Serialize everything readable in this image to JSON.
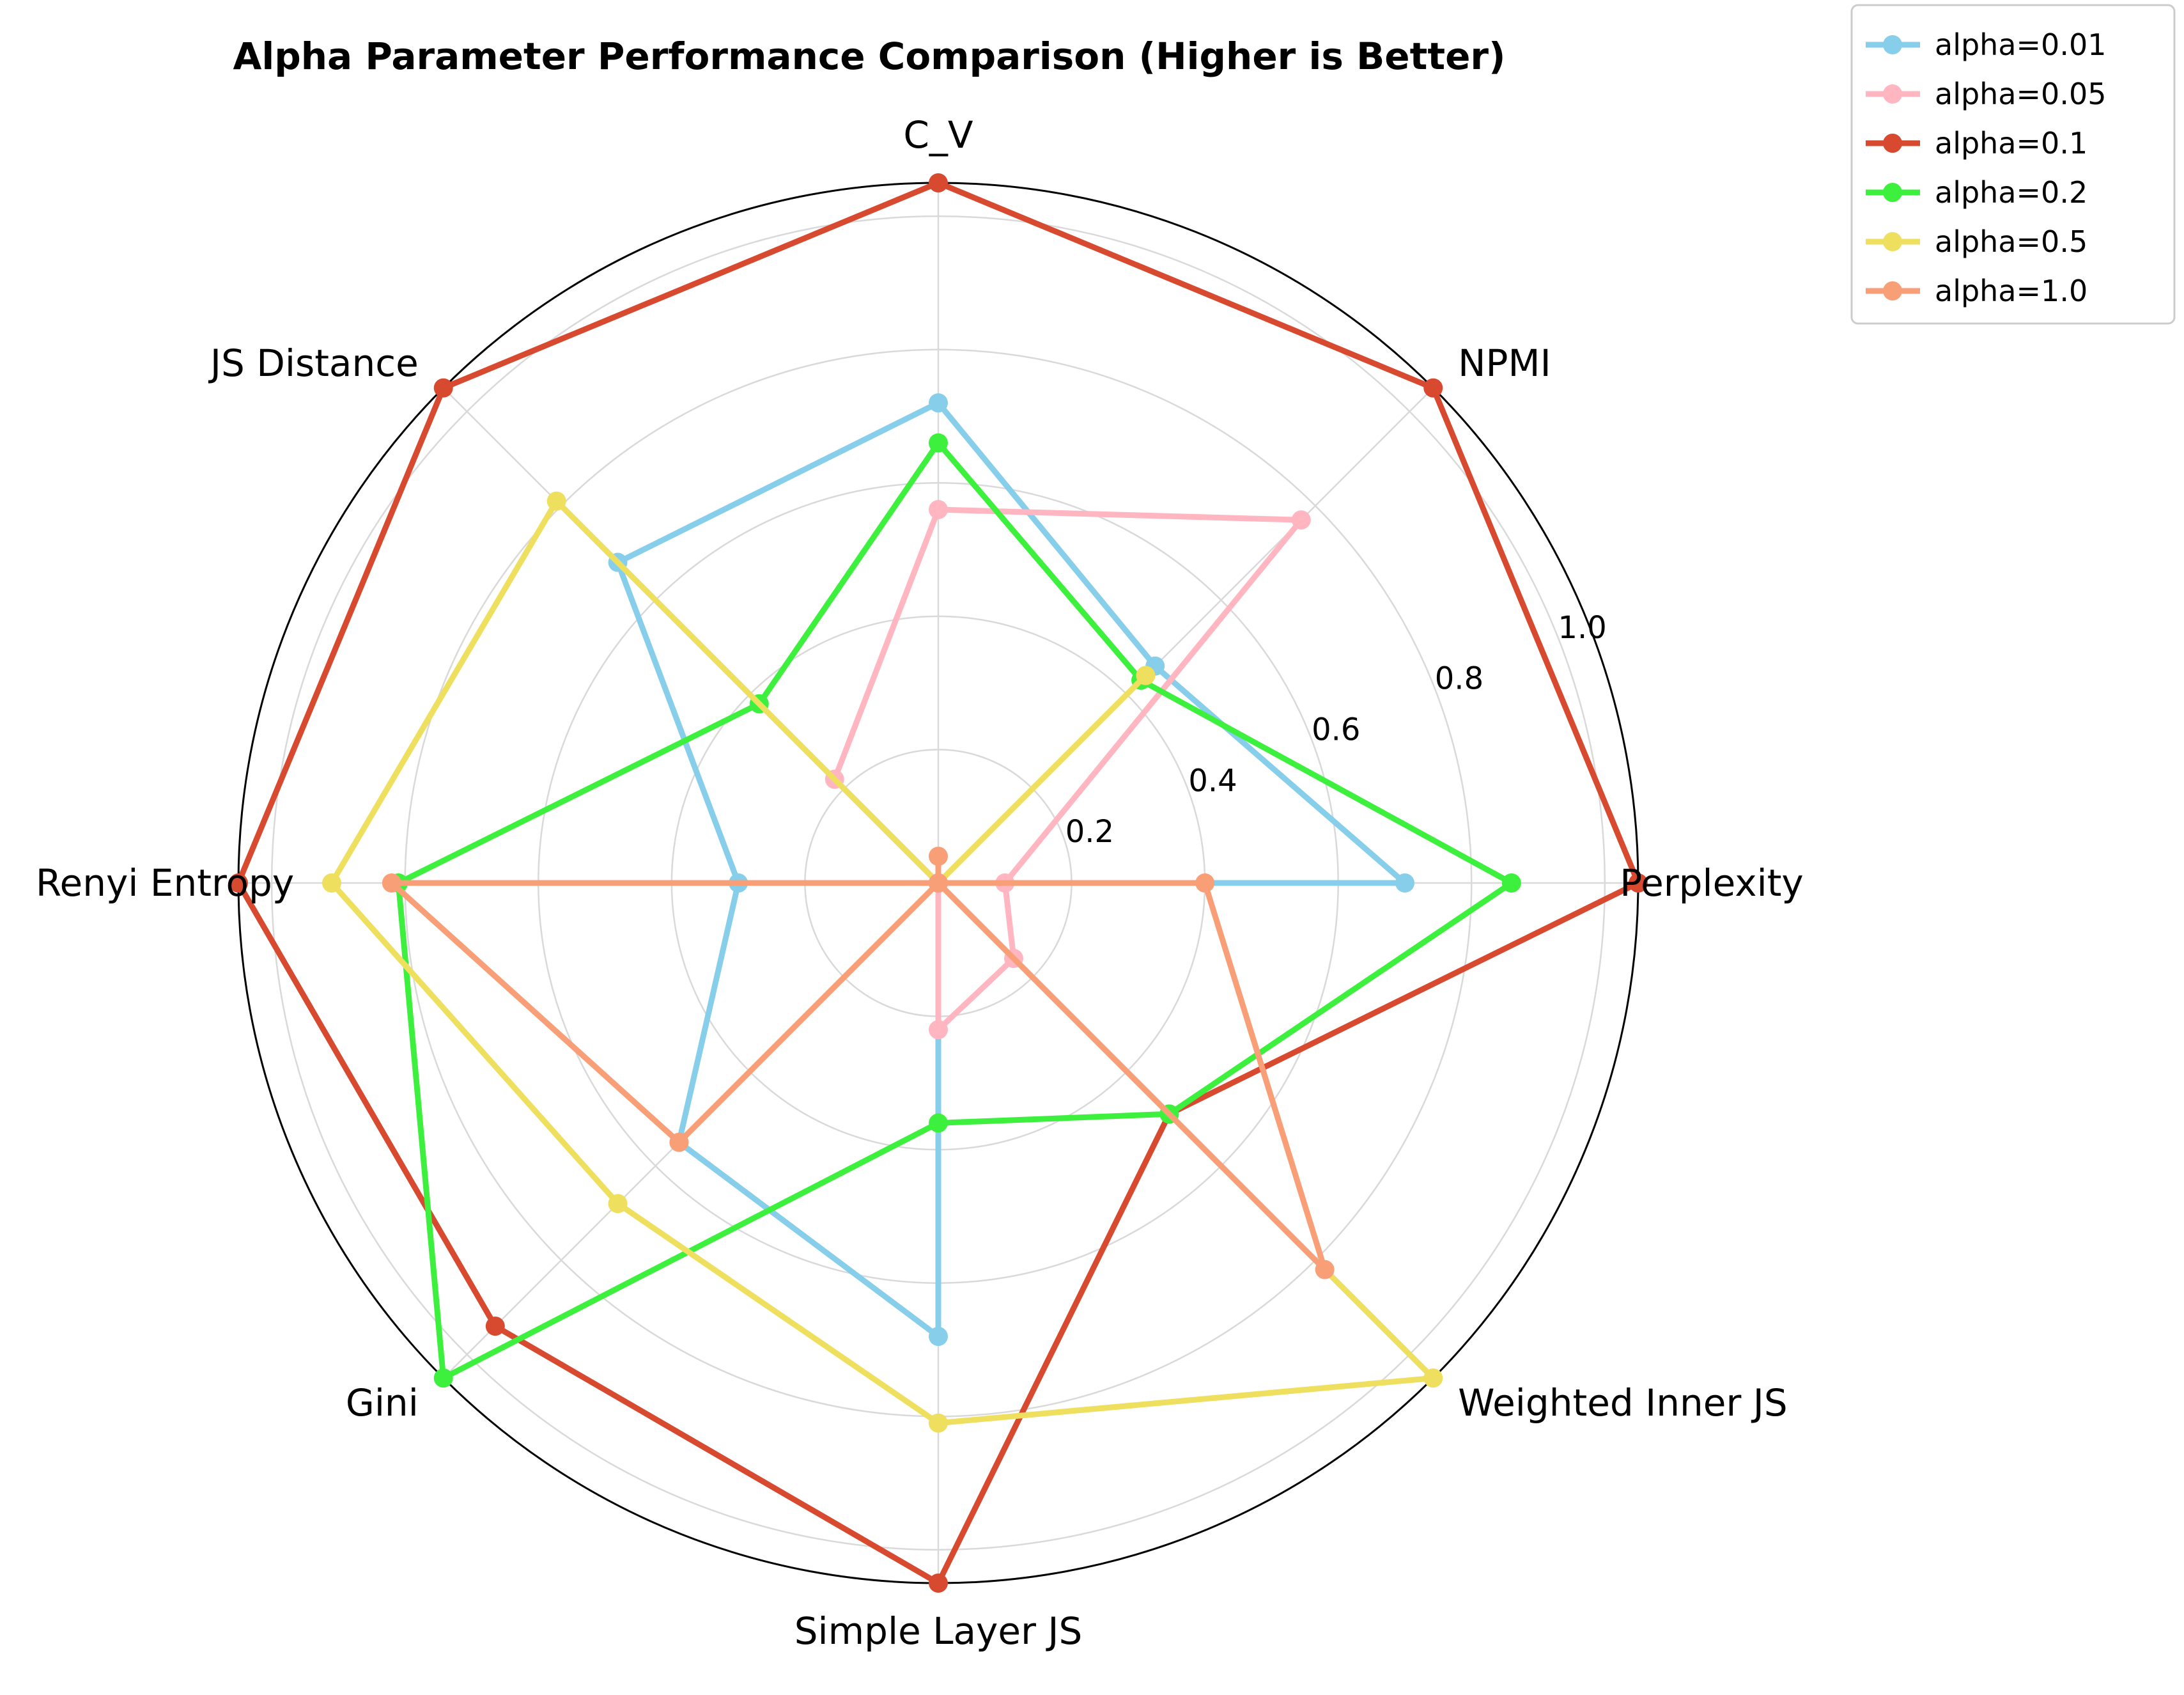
{
  "chart_data": {
    "type": "radar",
    "title": "Alpha Parameter Performance Comparison (Higher is Better)",
    "axes": [
      "Perplexity",
      "NPMI",
      "C_V",
      "JS Distance",
      "Renyi Entropy",
      "Gini",
      "Simple Layer JS",
      "Weighted Inner JS"
    ],
    "rlim": [
      0,
      1.05
    ],
    "rticks": [
      0.2,
      0.4,
      0.6,
      0.8,
      1.0
    ],
    "rtick_labels": [
      "0.2",
      "0.4",
      "0.6",
      "0.8",
      "1.0"
    ],
    "grid": true,
    "legend_position": "outside top-right",
    "series": [
      {
        "name": "alpha=0.01",
        "color": "#87ceeb",
        "values": [
          0.7,
          0.46,
          0.72,
          0.68,
          0.3,
          0.55,
          0.68,
          0.0
        ]
      },
      {
        "name": "alpha=0.05",
        "color": "#ffb6c1",
        "values": [
          0.1,
          0.77,
          0.56,
          0.22,
          0.0,
          0.0,
          0.22,
          0.16
        ]
      },
      {
        "name": "alpha=0.1",
        "color": "#d84a30",
        "values": [
          1.05,
          1.05,
          1.05,
          1.05,
          1.05,
          0.94,
          1.05,
          0.49
        ]
      },
      {
        "name": "alpha=0.2",
        "color": "#3ef03e",
        "values": [
          0.86,
          0.43,
          0.66,
          0.38,
          0.81,
          1.05,
          0.36,
          0.49
        ]
      },
      {
        "name": "alpha=0.5",
        "color": "#eedf5e",
        "values": [
          0.0,
          0.44,
          0.0,
          0.81,
          0.91,
          0.68,
          0.81,
          1.05
        ]
      },
      {
        "name": "alpha=1.0",
        "color": "#f99f78",
        "values": [
          0.4,
          0.0,
          0.04,
          0.0,
          0.82,
          0.55,
          0.0,
          0.82
        ]
      }
    ]
  }
}
